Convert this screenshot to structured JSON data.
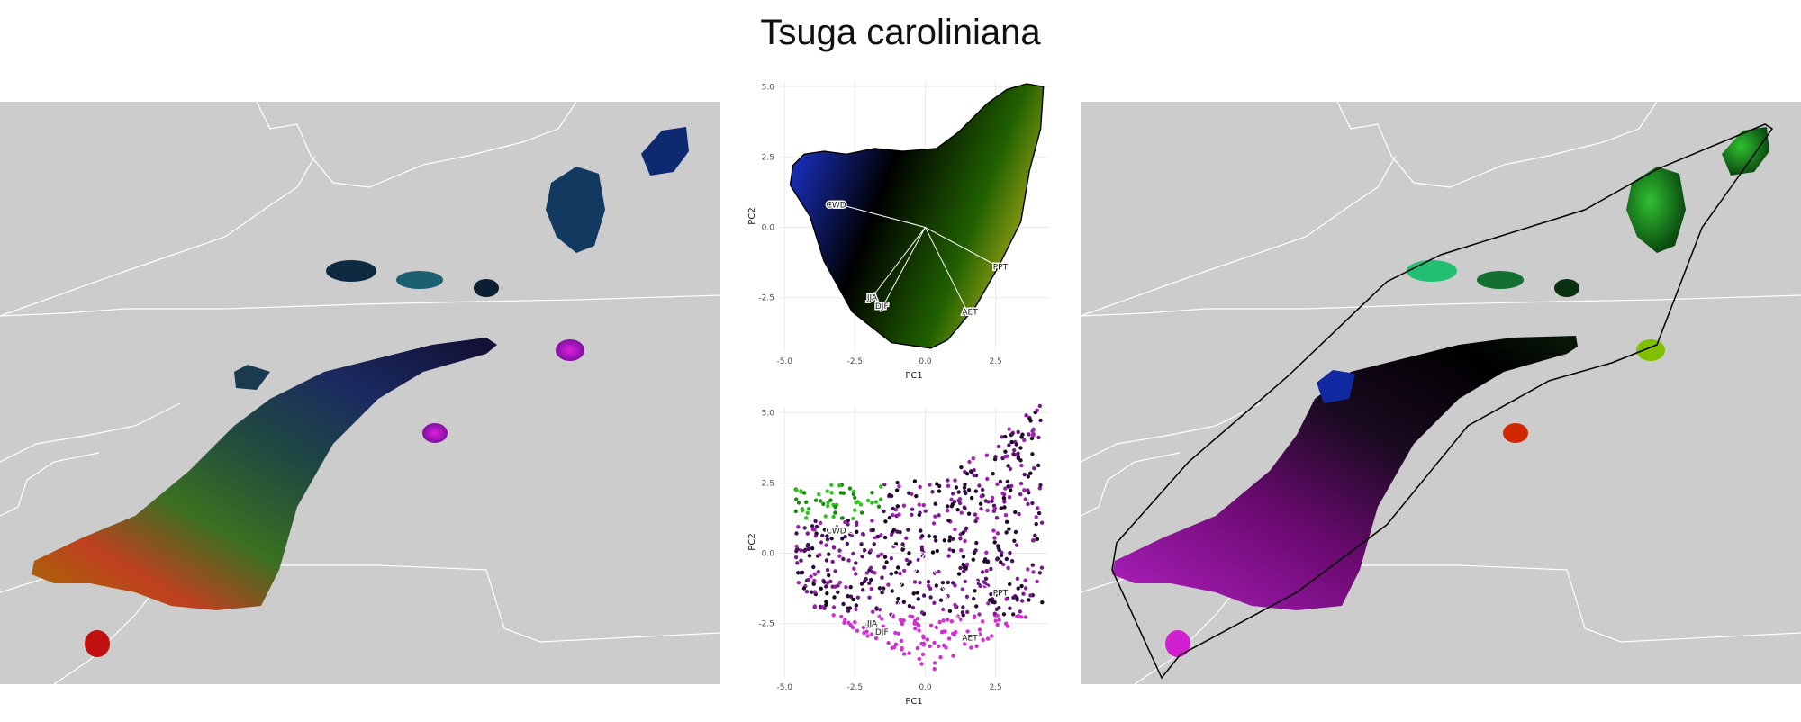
{
  "title": "Tsuga caroliniana",
  "colors": {
    "map_background": "#cccccc",
    "border": "#ffffff",
    "hull": "#000000",
    "vector": "#ffffff"
  },
  "chart_data": [
    {
      "type": "scatter",
      "panel": "pca-climate-space",
      "xlabel": "PC1",
      "ylabel": "PC2",
      "xlim": [
        -5.2,
        4.4
      ],
      "ylim": [
        -4.4,
        5.2
      ],
      "xticks": [
        "-5.0",
        "-2.5",
        "0.0",
        "2.5"
      ],
      "yticks": [
        "-2.5",
        "0.0",
        "2.5",
        "5.0"
      ],
      "grid": true,
      "hull": [
        [
          -4.7,
          2.2
        ],
        [
          -4.3,
          2.6
        ],
        [
          -3.6,
          2.7
        ],
        [
          -2.8,
          2.6
        ],
        [
          -1.8,
          2.8
        ],
        [
          -0.8,
          2.7
        ],
        [
          0.4,
          2.8
        ],
        [
          1.2,
          3.4
        ],
        [
          2.2,
          4.4
        ],
        [
          2.9,
          4.9
        ],
        [
          3.6,
          5.1
        ],
        [
          4.2,
          5.0
        ],
        [
          4.1,
          3.5
        ],
        [
          3.7,
          2.0
        ],
        [
          3.4,
          0.2
        ],
        [
          2.6,
          -1.4
        ],
        [
          1.8,
          -2.8
        ],
        [
          0.8,
          -4.0
        ],
        [
          0.2,
          -4.3
        ],
        [
          -1.2,
          -4.1
        ],
        [
          -2.6,
          -3.0
        ],
        [
          -3.6,
          -1.2
        ],
        [
          -4.1,
          0.4
        ],
        [
          -4.8,
          1.5
        ]
      ],
      "vectors": [
        {
          "label": "CWD",
          "x": -3.0,
          "y": 0.8
        },
        {
          "label": "PPT",
          "x": 2.6,
          "y": -1.4
        },
        {
          "label": "AET",
          "x": 1.5,
          "y": -3.0
        },
        {
          "label": "DJF",
          "x": -1.5,
          "y": -2.8
        },
        {
          "label": "JJA",
          "x": -1.9,
          "y": -2.5
        }
      ]
    },
    {
      "type": "scatter",
      "panel": "pca-occurrences",
      "xlabel": "PC1",
      "ylabel": "PC2",
      "xlim": [
        -5.2,
        4.4
      ],
      "ylim": [
        -4.4,
        5.2
      ],
      "xticks": [
        "-5.0",
        "-2.5",
        "0.0",
        "2.5"
      ],
      "yticks": [
        "-2.5",
        "0.0",
        "2.5",
        "5.0"
      ],
      "grid": true,
      "vectors": [
        {
          "label": "CWD",
          "x": -3.0,
          "y": 0.8
        },
        {
          "label": "PPT",
          "x": 2.6,
          "y": -1.4
        },
        {
          "label": "AET",
          "x": 1.5,
          "y": -3.0
        },
        {
          "label": "DJF",
          "x": -1.5,
          "y": -2.8
        },
        {
          "label": "JJA",
          "x": -1.9,
          "y": -2.5
        }
      ]
    }
  ]
}
